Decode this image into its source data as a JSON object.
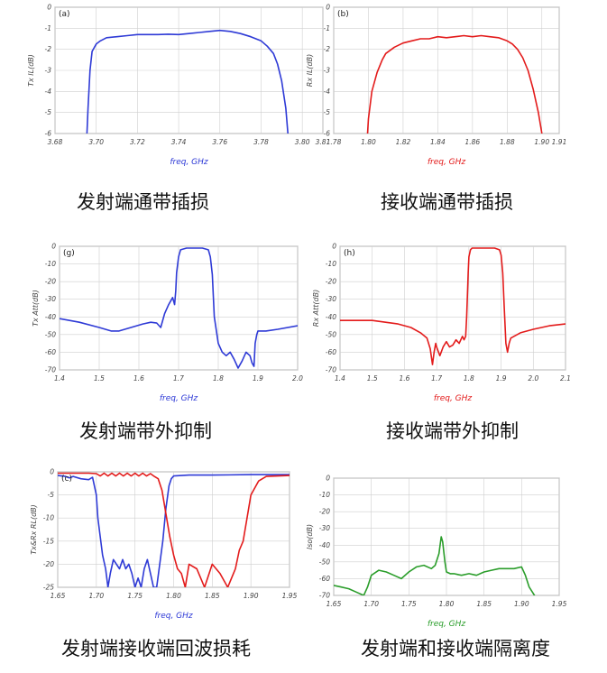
{
  "colors": {
    "blue": "#2e3ad6",
    "red": "#e31b1b",
    "green": "#2a9d2a",
    "grid": "#cfcfcf",
    "frame": "#9a9a9a"
  },
  "chart_data": [
    {
      "id": "a",
      "type": "line",
      "corner_label": "(a)",
      "xlabel": "freq, GHz",
      "ylabel": "Tx IL(dB)",
      "xlim": [
        3.68,
        3.81
      ],
      "ylim": [
        -6,
        0
      ],
      "xticks": [
        "3.68",
        "3.70",
        "3.72",
        "3.74",
        "3.76",
        "3.78",
        "3.80",
        "3.81"
      ],
      "yticks": [
        "0",
        "-1",
        "-2",
        "-3",
        "-4",
        "-5",
        "-6"
      ],
      "caption": "发射端通带插损",
      "series": [
        {
          "color": "blue",
          "x": [
            3.6955,
            3.696,
            3.697,
            3.698,
            3.7,
            3.702,
            3.705,
            3.71,
            3.715,
            3.72,
            3.725,
            3.73,
            3.735,
            3.74,
            3.745,
            3.75,
            3.755,
            3.76,
            3.765,
            3.77,
            3.775,
            3.78,
            3.783,
            3.786,
            3.788,
            3.79,
            3.792,
            3.793
          ],
          "y": [
            -6,
            -4.8,
            -3.0,
            -2.1,
            -1.75,
            -1.6,
            -1.45,
            -1.4,
            -1.35,
            -1.3,
            -1.3,
            -1.3,
            -1.28,
            -1.3,
            -1.25,
            -1.2,
            -1.15,
            -1.1,
            -1.15,
            -1.25,
            -1.4,
            -1.6,
            -1.85,
            -2.2,
            -2.7,
            -3.5,
            -4.8,
            -6
          ]
        }
      ]
    },
    {
      "id": "b",
      "type": "line",
      "corner_label": "(b)",
      "xlabel": "freq, GHz",
      "ylabel": "Rx IL(dB)",
      "xlim": [
        1.78,
        1.91
      ],
      "ylim": [
        -6,
        0
      ],
      "xticks": [
        "1.78",
        "1.80",
        "1.82",
        "1.84",
        "1.86",
        "1.88",
        "1.90",
        "1.91"
      ],
      "yticks": [
        "0",
        "-1",
        "-2",
        "-3",
        "-4",
        "-5",
        "-6"
      ],
      "caption": "接收端通带插损",
      "series": [
        {
          "color": "red",
          "x": [
            1.7995,
            1.8,
            1.802,
            1.805,
            1.808,
            1.81,
            1.815,
            1.82,
            1.825,
            1.83,
            1.835,
            1.84,
            1.845,
            1.85,
            1.855,
            1.86,
            1.865,
            1.87,
            1.875,
            1.88,
            1.883,
            1.886,
            1.889,
            1.892,
            1.895,
            1.898,
            1.9
          ],
          "y": [
            -6,
            -5.3,
            -4.0,
            -3.1,
            -2.5,
            -2.2,
            -1.9,
            -1.7,
            -1.6,
            -1.5,
            -1.5,
            -1.4,
            -1.45,
            -1.4,
            -1.35,
            -1.4,
            -1.35,
            -1.4,
            -1.45,
            -1.6,
            -1.75,
            -2.0,
            -2.4,
            -3.0,
            -3.9,
            -5.0,
            -6
          ]
        }
      ]
    },
    {
      "id": "g",
      "type": "line",
      "corner_label": "(g)",
      "xlabel": "freq, GHz",
      "ylabel": "Tx Att(dB)",
      "xlim": [
        1.4,
        2.0
      ],
      "ylim": [
        -70,
        0
      ],
      "xticks": [
        "1.4",
        "1.5",
        "1.6",
        "1.7",
        "1.8",
        "1.9",
        "2.0"
      ],
      "yticks": [
        "0",
        "-10",
        "-20",
        "-30",
        "-40",
        "-50",
        "-60",
        "-70"
      ],
      "caption": "发射端带外抑制",
      "series": [
        {
          "color": "blue",
          "x": [
            1.4,
            1.45,
            1.5,
            1.53,
            1.55,
            1.58,
            1.61,
            1.63,
            1.645,
            1.655,
            1.665,
            1.675,
            1.685,
            1.69,
            1.693,
            1.695,
            1.7,
            1.705,
            1.72,
            1.76,
            1.775,
            1.78,
            1.785,
            1.79,
            1.8,
            1.81,
            1.82,
            1.83,
            1.84,
            1.85,
            1.86,
            1.87,
            1.88,
            1.885,
            1.89,
            1.893,
            1.897,
            1.9,
            1.92,
            1.95,
            2.0
          ],
          "y": [
            -41,
            -43,
            -46,
            -48,
            -48,
            -46,
            -44,
            -43,
            -43.5,
            -46,
            -38,
            -33,
            -29,
            -33,
            -25,
            -15,
            -6,
            -2,
            -1,
            -1,
            -2,
            -6,
            -16,
            -40,
            -55,
            -60,
            -62,
            -60,
            -64,
            -69,
            -65,
            -60,
            -62,
            -66,
            -68,
            -55,
            -50,
            -48,
            -48,
            -47,
            -45
          ]
        }
      ]
    },
    {
      "id": "h",
      "type": "line",
      "corner_label": "(h)",
      "xlabel": "freq, GHz",
      "ylabel": "Rx Att(dB)",
      "xlim": [
        1.4,
        2.1
      ],
      "ylim": [
        -70,
        0
      ],
      "xticks": [
        "1.4",
        "1.5",
        "1.6",
        "1.7",
        "1.8",
        "1.9",
        "2.0",
        "2.1"
      ],
      "yticks": [
        "0",
        "-10",
        "-20",
        "-30",
        "-40",
        "-50",
        "-60",
        "-70"
      ],
      "caption": "接收端带外抑制",
      "series": [
        {
          "color": "red",
          "x": [
            1.4,
            1.5,
            1.58,
            1.62,
            1.65,
            1.67,
            1.68,
            1.687,
            1.692,
            1.697,
            1.7,
            1.71,
            1.72,
            1.73,
            1.74,
            1.75,
            1.76,
            1.77,
            1.78,
            1.785,
            1.79,
            1.793,
            1.795,
            1.798,
            1.8,
            1.805,
            1.81,
            1.82,
            1.88,
            1.895,
            1.9,
            1.905,
            1.91,
            1.915,
            1.92,
            1.925,
            1.93,
            1.94,
            1.96,
            2.0,
            2.05,
            2.1
          ],
          "y": [
            -42,
            -42,
            -44,
            -46,
            -49,
            -52,
            -58,
            -67,
            -60,
            -55,
            -57,
            -62,
            -57,
            -54,
            -57,
            -56,
            -53,
            -55,
            -51,
            -53,
            -51,
            -40,
            -30,
            -15,
            -6,
            -2,
            -1,
            -1,
            -1,
            -2,
            -5,
            -15,
            -35,
            -55,
            -60,
            -55,
            -52,
            -51,
            -49,
            -47,
            -45,
            -44
          ]
        }
      ]
    },
    {
      "id": "c",
      "type": "line",
      "corner_label": "(c)",
      "xlabel": "freq, GHz",
      "ylabel": "Tx&Rx RL(dB)",
      "xlim": [
        1.65,
        1.95
      ],
      "ylim": [
        -25,
        0
      ],
      "xticks": [
        "1.65",
        "1.70",
        "1.75",
        "1.80",
        "1.85",
        "1.90",
        "1.95"
      ],
      "yticks": [
        "0",
        "-5",
        "-10",
        "-15",
        "-20",
        "-25"
      ],
      "caption": "发射端接收端回波损耗",
      "series": [
        {
          "color": "blue",
          "x": [
            1.65,
            1.66,
            1.665,
            1.67,
            1.68,
            1.69,
            1.695,
            1.7,
            1.702,
            1.705,
            1.708,
            1.712,
            1.715,
            1.718,
            1.722,
            1.726,
            1.73,
            1.734,
            1.738,
            1.742,
            1.746,
            1.75,
            1.754,
            1.758,
            1.762,
            1.766,
            1.77,
            1.774,
            1.778,
            1.782,
            1.786,
            1.79,
            1.794,
            1.797,
            1.8,
            1.82,
            1.85,
            1.9,
            1.95
          ],
          "y": [
            -0.8,
            -1.0,
            -1.3,
            -1.0,
            -1.5,
            -1.7,
            -1.2,
            -5,
            -10,
            -14,
            -18,
            -21,
            -25,
            -22,
            -19,
            -20,
            -21,
            -19,
            -21,
            -20,
            -22,
            -25,
            -23,
            -25,
            -21,
            -19,
            -22,
            -25,
            -25,
            -20,
            -15,
            -8,
            -3,
            -1.5,
            -0.9,
            -0.7,
            -0.7,
            -0.6,
            -0.6
          ]
        },
        {
          "color": "red",
          "x": [
            1.65,
            1.69,
            1.7,
            1.705,
            1.71,
            1.715,
            1.72,
            1.725,
            1.73,
            1.735,
            1.74,
            1.745,
            1.75,
            1.755,
            1.76,
            1.765,
            1.77,
            1.775,
            1.78,
            1.785,
            1.79,
            1.795,
            1.8,
            1.805,
            1.81,
            1.815,
            1.82,
            1.83,
            1.84,
            1.85,
            1.86,
            1.87,
            1.88,
            1.885,
            1.89,
            1.895,
            1.9,
            1.91,
            1.92,
            1.95
          ],
          "y": [
            -0.3,
            -0.3,
            -0.4,
            -0.9,
            -0.3,
            -0.9,
            -0.3,
            -0.9,
            -0.3,
            -0.9,
            -0.3,
            -0.9,
            -0.3,
            -0.9,
            -0.3,
            -0.9,
            -0.4,
            -1.0,
            -1.5,
            -4,
            -9,
            -14,
            -18,
            -21,
            -22,
            -25,
            -20,
            -21,
            -25,
            -20,
            -22,
            -25,
            -21,
            -17,
            -15,
            -10,
            -5,
            -2,
            -1,
            -0.8
          ]
        }
      ]
    },
    {
      "id": "iso",
      "type": "line",
      "corner_label": "",
      "xlabel": "freq, GHz",
      "ylabel": "Iso(dB)",
      "xlim": [
        1.65,
        1.95
      ],
      "ylim": [
        -70,
        0
      ],
      "xticks": [
        "1.65",
        "1.70",
        "1.75",
        "1.80",
        "1.85",
        "1.90",
        "1.95"
      ],
      "yticks": [
        "0",
        "-10",
        "-20",
        "-30",
        "-40",
        "-50",
        "-60",
        "-70"
      ],
      "caption": "发射端和接收端隔离度",
      "series": [
        {
          "color": "green",
          "x": [
            1.65,
            1.66,
            1.67,
            1.68,
            1.69,
            1.695,
            1.7,
            1.71,
            1.72,
            1.73,
            1.74,
            1.75,
            1.76,
            1.77,
            1.78,
            1.785,
            1.79,
            1.793,
            1.795,
            1.798,
            1.8,
            1.805,
            1.81,
            1.82,
            1.83,
            1.84,
            1.85,
            1.86,
            1.87,
            1.88,
            1.89,
            1.9,
            1.905,
            1.91,
            1.92,
            1.93
          ],
          "y": [
            -64,
            -65,
            -66,
            -68,
            -70,
            -65,
            -58,
            -55,
            -56,
            -58,
            -60,
            -56,
            -53,
            -52,
            -54,
            -52,
            -45,
            -35,
            -38,
            -50,
            -56,
            -57,
            -57,
            -58,
            -57,
            -58,
            -56,
            -55,
            -54,
            -54,
            -54,
            -53,
            -58,
            -65,
            -72,
            -75
          ]
        }
      ]
    }
  ]
}
